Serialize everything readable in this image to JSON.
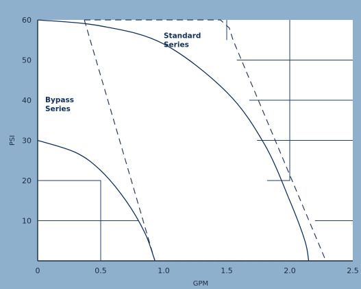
{
  "chart_data": {
    "type": "line",
    "title": "",
    "xlabel": "GPM",
    "ylabel": "PSI",
    "xlim": [
      0,
      2.5
    ],
    "ylim": [
      0,
      60
    ],
    "x_ticks": [
      "0",
      "0.5",
      "1.0",
      "1.5",
      "2.0",
      "2.5"
    ],
    "y_ticks": [
      "10",
      "20",
      "30",
      "40",
      "50",
      "60"
    ],
    "annotations": [
      {
        "lines": [
          "Standard",
          "Series"
        ],
        "x": 1.0,
        "y": 55.5
      },
      {
        "lines": [
          "Bypass",
          "Series"
        ],
        "x": 0.06,
        "y": 39.5
      }
    ],
    "series": [
      {
        "style": "solid",
        "points": [
          [
            0,
            30
          ],
          [
            0.3,
            27
          ],
          [
            0.5,
            22.5
          ],
          [
            0.7,
            15
          ],
          [
            0.85,
            7
          ],
          [
            0.92,
            1
          ],
          [
            0.93,
            0
          ]
        ]
      },
      {
        "style": "solid",
        "points": [
          [
            0,
            60
          ],
          [
            0.5,
            58.5
          ],
          [
            1.0,
            54
          ],
          [
            1.5,
            42
          ],
          [
            1.8,
            29
          ],
          [
            2.0,
            15
          ],
          [
            2.12,
            5
          ],
          [
            2.15,
            0
          ]
        ]
      },
      {
        "style": "dashed",
        "points": [
          [
            0.37,
            60
          ],
          [
            0.93,
            0
          ]
        ]
      },
      {
        "style": "dashed",
        "points": [
          [
            0.37,
            60
          ],
          [
            1.45,
            60
          ],
          [
            1.52,
            58
          ],
          [
            1.55,
            55
          ],
          [
            2.28,
            0.5
          ]
        ]
      },
      {
        "style": "dashed",
        "points": [
          [
            0.93,
            0
          ],
          [
            2.15,
            0
          ]
        ]
      }
    ],
    "reference_lines": [
      {
        "points": [
          [
            0,
            20
          ],
          [
            0.5,
            20
          ],
          [
            0.5,
            0
          ]
        ]
      },
      {
        "points": [
          [
            0,
            10
          ],
          [
            0.8,
            10
          ]
        ]
      },
      {
        "points": [
          [
            1.5,
            60
          ],
          [
            1.5,
            55
          ]
        ]
      },
      {
        "points": [
          [
            1.58,
            50
          ],
          [
            2.5,
            50
          ]
        ]
      },
      {
        "points": [
          [
            2.0,
            60
          ],
          [
            2.0,
            20
          ],
          [
            1.82,
            20
          ]
        ]
      },
      {
        "points": [
          [
            1.68,
            40
          ],
          [
            2.5,
            40
          ]
        ]
      },
      {
        "points": [
          [
            1.74,
            30
          ],
          [
            2.5,
            30
          ]
        ]
      },
      {
        "points": [
          [
            2.2,
            10
          ],
          [
            2.5,
            10
          ]
        ]
      }
    ],
    "colors": {
      "background": "#8fb0cc",
      "plot_background": "#ffffff",
      "line": "#12305a",
      "dashed": "#2a3a55",
      "reference": "#1f3d6b"
    },
    "grid": false
  }
}
